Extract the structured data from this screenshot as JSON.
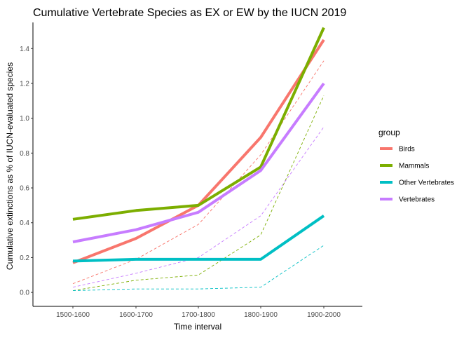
{
  "chart_data": {
    "type": "line",
    "title": "Cumulative Vertebrate Species as EX or EW by the IUCN 2019",
    "xlabel": "Time interval",
    "ylabel": "Cumulative extinctions as % of IUCN-evaluated species",
    "categories": [
      "1500-1600",
      "1600-1700",
      "1700-1800",
      "1800-1900",
      "1900-2000"
    ],
    "ylim": [
      -0.08,
      1.55
    ],
    "yticks": [
      "0.0",
      "0.2",
      "0.4",
      "0.6",
      "0.8",
      "1.0",
      "1.2",
      "1.4"
    ],
    "grid": false,
    "legend": {
      "title": "group",
      "position": "right"
    },
    "series": [
      {
        "name": "Birds",
        "color": "#F8766D",
        "values": [
          0.17,
          0.31,
          0.5,
          0.89,
          1.45
        ],
        "dashed_values": [
          0.05,
          0.19,
          0.39,
          0.79,
          1.33
        ]
      },
      {
        "name": "Mammals",
        "color": "#7CAE00",
        "values": [
          0.42,
          0.47,
          0.5,
          0.72,
          1.52
        ],
        "dashed_values": [
          0.01,
          0.07,
          0.1,
          0.33,
          1.13
        ]
      },
      {
        "name": "Other Vertebrates",
        "color": "#00BFC4",
        "values": [
          0.18,
          0.19,
          0.19,
          0.19,
          0.44
        ],
        "dashed_values": [
          0.01,
          0.02,
          0.02,
          0.03,
          0.27
        ]
      },
      {
        "name": "Vertebrates",
        "color": "#C77CFF",
        "values": [
          0.29,
          0.36,
          0.46,
          0.7,
          1.2
        ],
        "dashed_values": [
          0.03,
          0.11,
          0.2,
          0.44,
          0.95
        ]
      }
    ]
  }
}
